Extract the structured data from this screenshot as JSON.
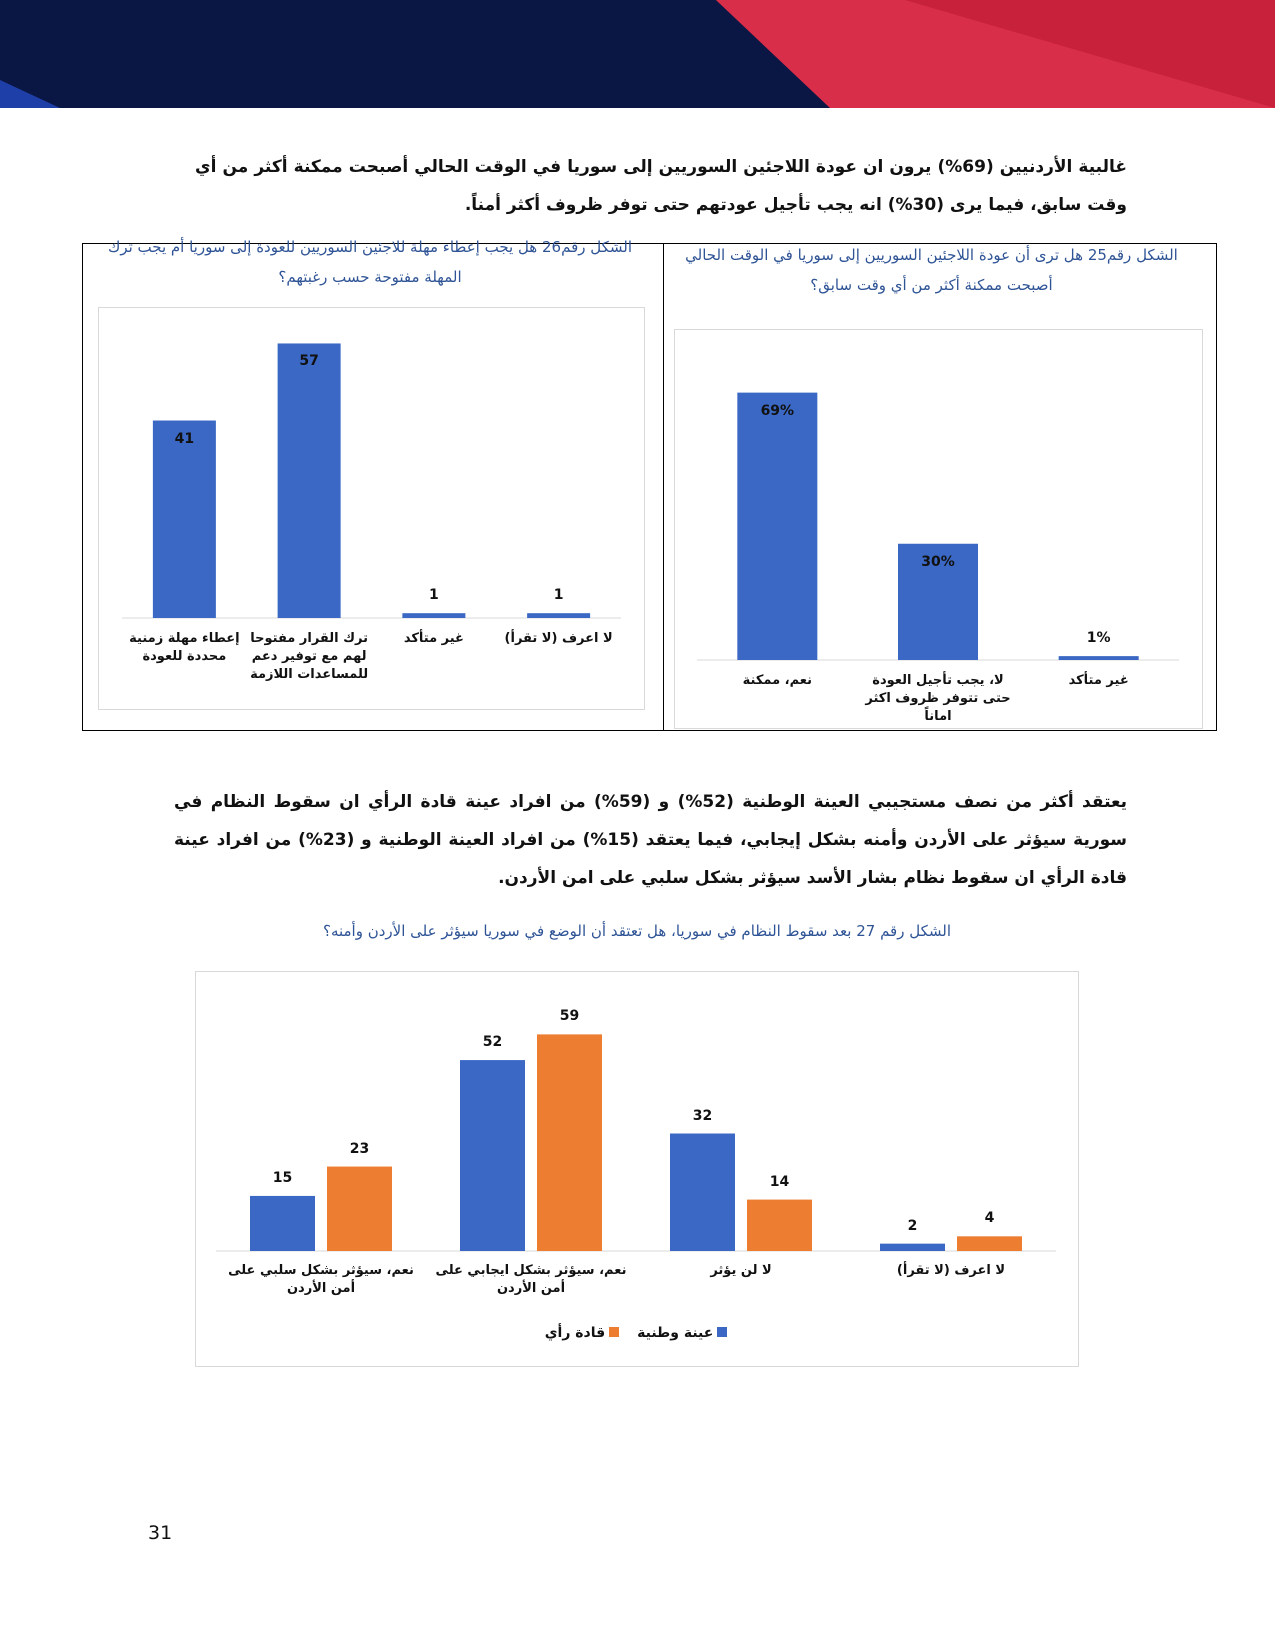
{
  "paragraphs": [
    "غالبية الأردنيين (69%) يرون ان عودة اللاجئين السوريين إلى سوريا في الوقت الحالي أصبحت ممكنة أكثر من أي وقت سابق، فيما يرى (30%) انه يجب تأجيل عودتهم حتى توفر ظروف أكثر أمناً.",
    "يعتقد أكثر من نصف مستجيبي العينة الوطنية (52%) و (59%) من افراد عينة قادة الرأي ان سقوط النظام في سورية سيؤثر على الأردن وأمنه بشكل إيجابي، فيما يعتقد (15%) من افراد العينة الوطنية و (23%) من افراد عينة قادة الرأي ان سقوط نظام بشار الأسد سيؤثر بشكل سلبي على امن الأردن."
  ],
  "chart_data": [
    {
      "type": "bar",
      "title": "الشكل رقم25 هل ترى أن عودة اللاجئين السوريين إلى سوريا في الوقت الحالي أصبحت ممكنة أكثر من أي وقت سابق؟",
      "categories": [
        "نعم، ممكنة",
        "لا، يجب تأجيل العودة حتى تتوفر ظروف اكثر اماناً",
        "غير متأكد"
      ],
      "values": [
        69,
        30,
        1
      ],
      "value_labels": [
        "69%",
        "30%",
        "1%"
      ],
      "color": "#3a68c4",
      "ylim": [
        0,
        80
      ]
    },
    {
      "type": "bar",
      "title": "الشكل رقم26 هل يجب إعطاء مهلة للاجئين السوريين للعودة إلى سوريا أم يجب ترك المهلة مفتوحة حسب رغبتهم؟",
      "categories": [
        "إعطاء مهلة زمنية محددة للعودة",
        "ترك القرار مفتوحا لهم مع توفير دعم للمساعدات اللازمة",
        "غير متأكد",
        "لا اعرف (لا تقرأ)"
      ],
      "values": [
        41,
        57,
        1,
        1
      ],
      "color": "#3a68c4",
      "ylim": [
        0,
        60
      ]
    },
    {
      "type": "bar",
      "title": "الشكل رقم 27 بعد سقوط النظام في سوريا، هل تعتقد أن الوضع في سوريا سيؤثر على الأردن وأمنه؟",
      "categories": [
        "نعم، سيؤثر بشكل سلبي على أمن الأردن",
        "نعم، سيؤثر بشكل ايجابي على أمن الأردن",
        "لا لن يؤثر",
        "لا اعرف (لا تقرأ)"
      ],
      "series": [
        {
          "name": "عينة وطنية",
          "color": "#3a68c4",
          "values": [
            15,
            52,
            32,
            2
          ]
        },
        {
          "name": "قادة رأي",
          "color": "#ed7d31",
          "values": [
            23,
            59,
            14,
            4
          ]
        }
      ],
      "ylim": [
        0,
        70
      ]
    }
  ],
  "page_number": 31
}
